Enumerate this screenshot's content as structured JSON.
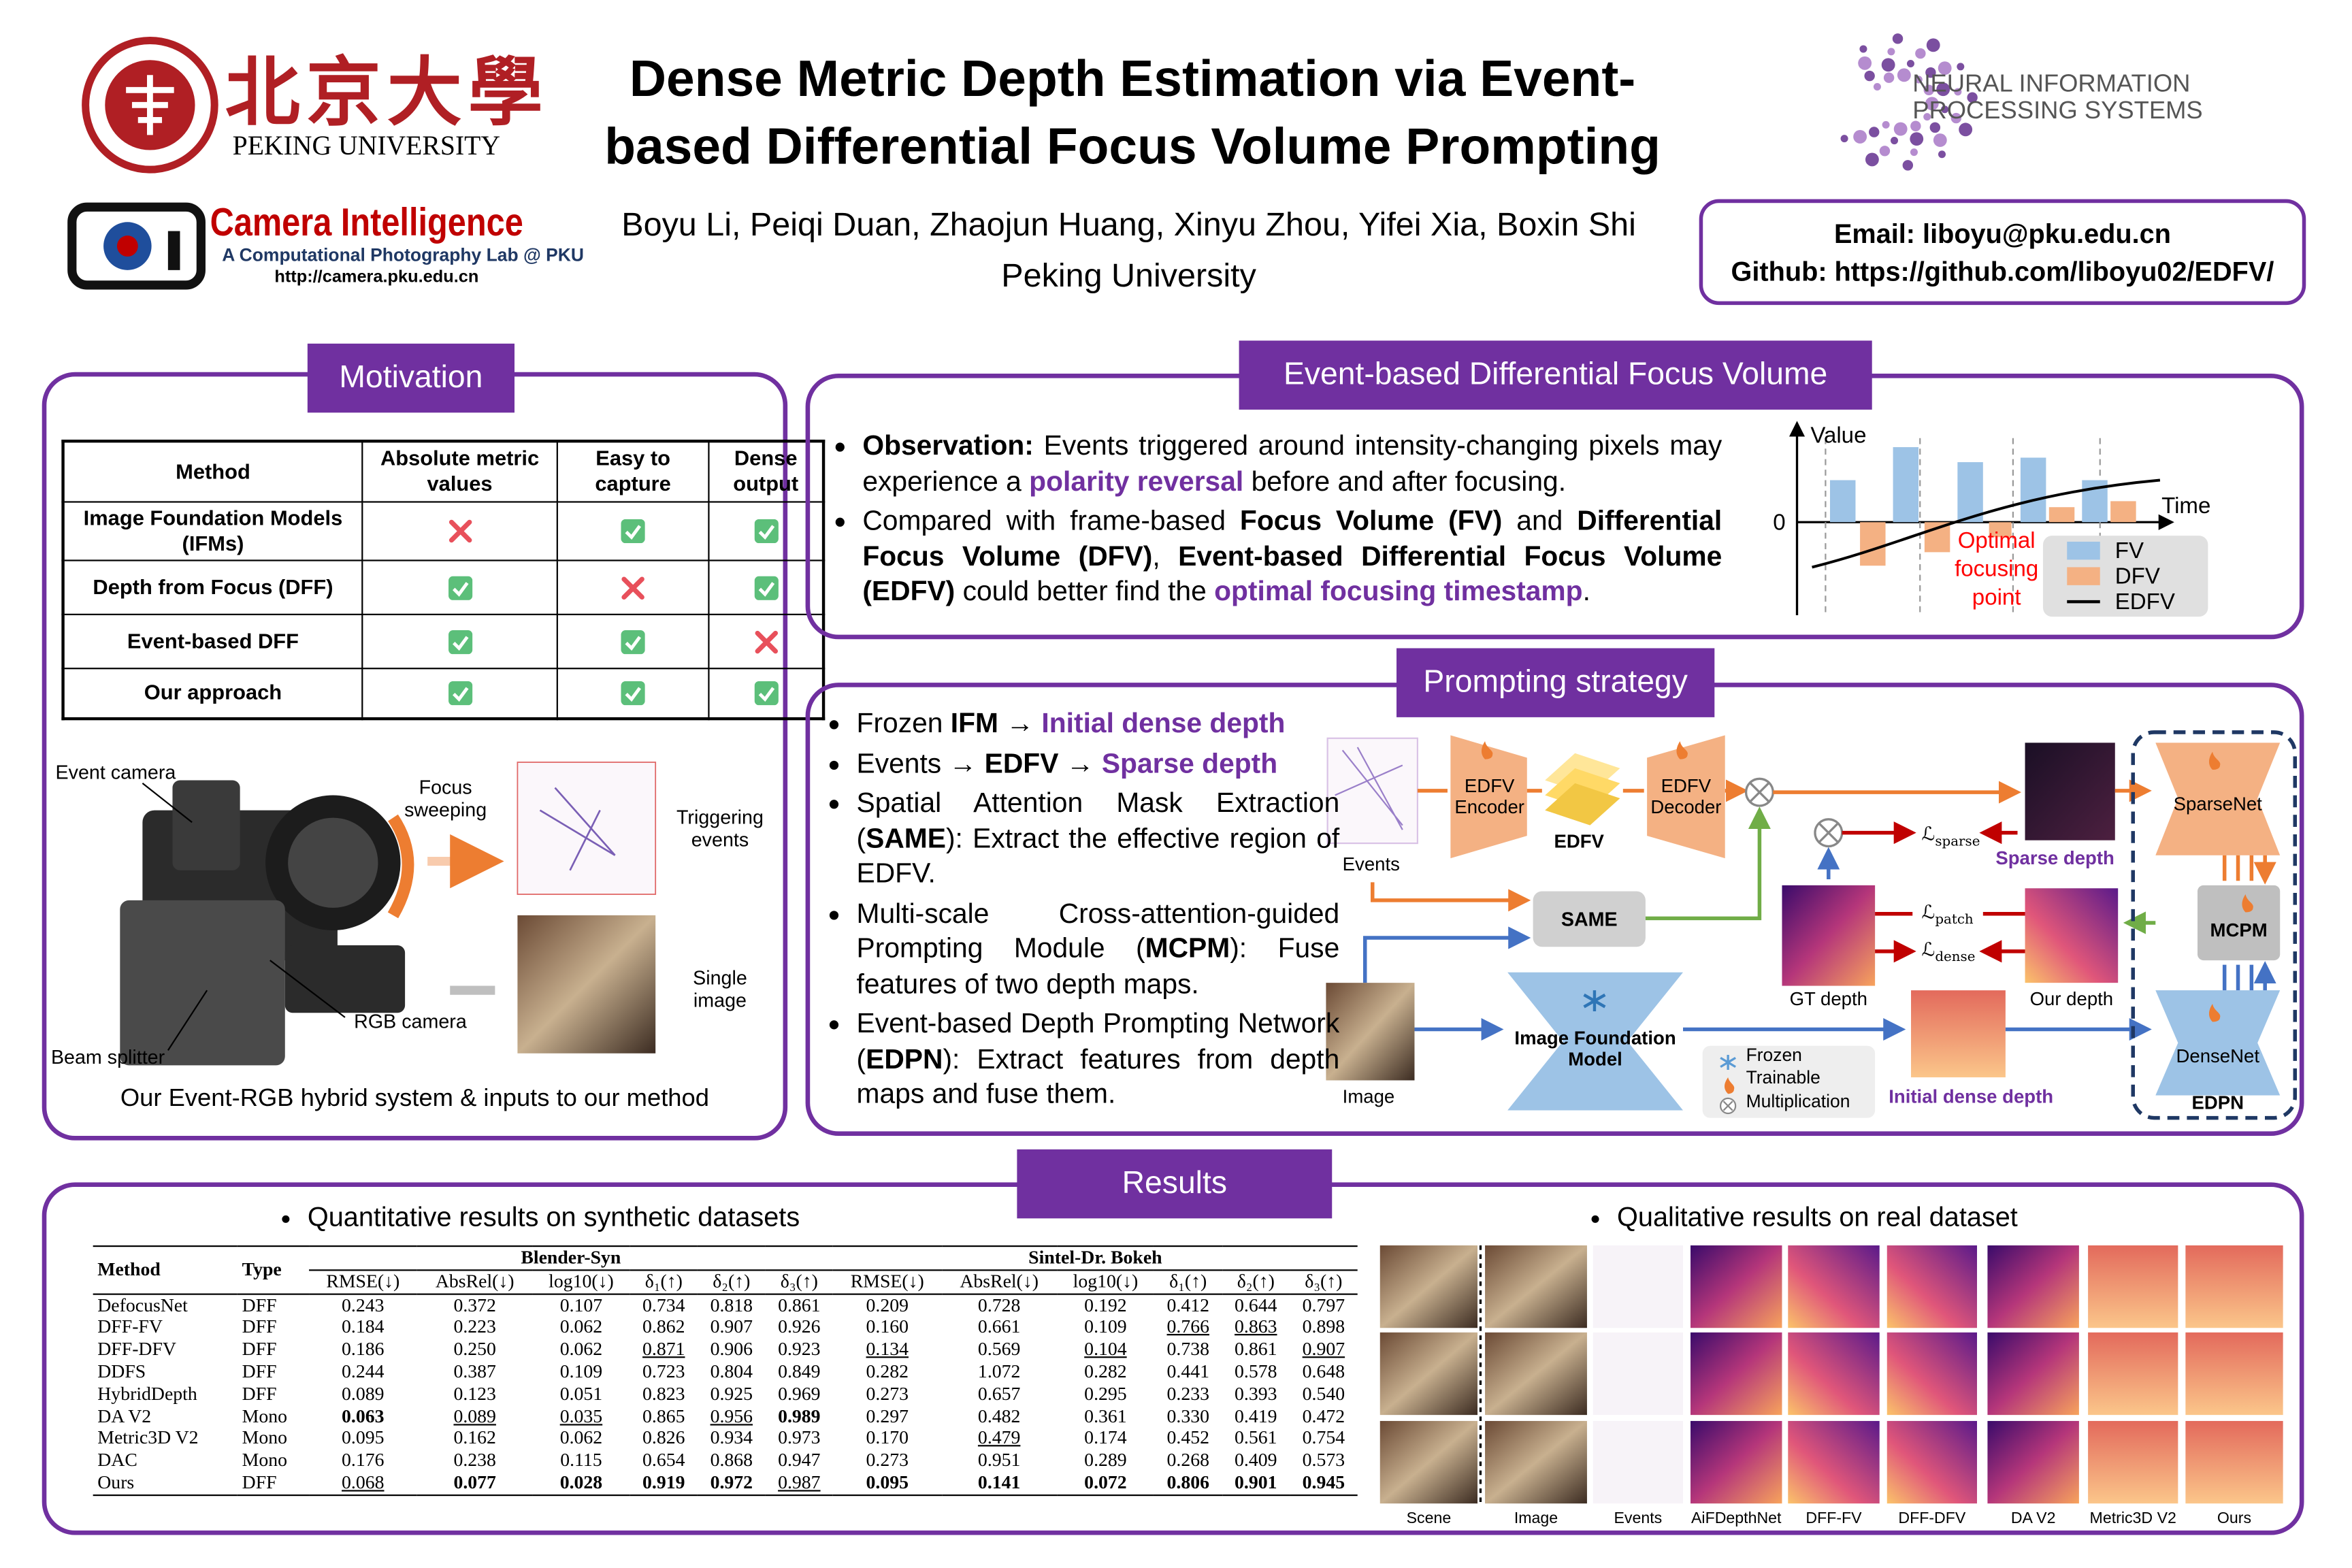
{
  "header": {
    "university_cn": "北京大學",
    "university_en": "PEKING UNIVERSITY",
    "title_lines": [
      "Dense Metric Depth Estimation via Event-",
      "based Differential Focus Volume Prompting"
    ],
    "authors": "Boyu Li, Peiqi Duan, Zhaojun Huang, Xinyu Zhou, Yifei Xia, Boxin Shi",
    "affiliation": "Peking University",
    "lab_name": "Camera Intelligence",
    "lab_subtitle": "A Computational Photography Lab @ PKU",
    "lab_url": "http://camera.pku.edu.cn",
    "conference_lines": [
      "NEURAL INFORMATION",
      "PROCESSING SYSTEMS"
    ],
    "email": "Email: liboyu@pku.edu.cn",
    "github": "Github: https://github.com/liboyu02/EDFV/"
  },
  "motivation": {
    "heading": "Motivation",
    "table": {
      "columns": [
        "Method",
        "Absolute metric values",
        "Easy to capture",
        "Dense output"
      ],
      "rows": [
        {
          "method": "Image Foundation Models (IFMs)",
          "checks": [
            false,
            true,
            true
          ]
        },
        {
          "method": "Depth from Focus (DFF)",
          "checks": [
            true,
            false,
            true
          ]
        },
        {
          "method": "Event-based DFF",
          "checks": [
            true,
            true,
            false
          ]
        },
        {
          "method": "Our approach",
          "checks": [
            true,
            true,
            true
          ]
        }
      ]
    },
    "figure": {
      "event_camera": "Event camera",
      "focus_sweeping": "Focus sweeping",
      "triggering_events": "Triggering events",
      "rgb_camera": "RGB camera",
      "single_image": "Single image",
      "beam_splitter": "Beam splitter"
    },
    "caption": "Our Event-RGB hybrid system & inputs to our method"
  },
  "edfv": {
    "heading": "Event-based Differential Focus Volume",
    "bullets": [
      [
        {
          "text": "Observation:",
          "style": "bold"
        },
        {
          "text": " Events triggered around intensity-changing pixels may experience a ",
          "style": "plain"
        },
        {
          "text": "polarity reversal",
          "style": "purple"
        },
        {
          "text": " before and after focusing.",
          "style": "plain"
        }
      ],
      [
        {
          "text": "Compared with frame-based ",
          "style": "plain"
        },
        {
          "text": "Focus Volume (FV)",
          "style": "bold"
        },
        {
          "text": " and ",
          "style": "plain"
        },
        {
          "text": "Differential Focus Volume (DFV)",
          "style": "bold"
        },
        {
          "text": ", ",
          "style": "plain"
        },
        {
          "text": "Event-based Differential Focus Volume (EDFV)",
          "style": "bold"
        },
        {
          "text": " could better find the ",
          "style": "plain"
        },
        {
          "text": "optimal focusing timestamp",
          "style": "purple"
        },
        {
          "text": ".",
          "style": "plain"
        }
      ]
    ],
    "plot": {
      "y_label": "Value",
      "x_label": "Time",
      "zero": 0,
      "annotation": "Optimal focusing point",
      "legend": [
        {
          "name": "FV",
          "color": "#9dc3e6"
        },
        {
          "name": "DFV",
          "color": "#f4b183"
        },
        {
          "name": "EDFV",
          "color": "#000000"
        }
      ]
    }
  },
  "prompting": {
    "heading": "Prompting strategy",
    "bullets": [
      [
        {
          "text": "Frozen ",
          "style": "plain"
        },
        {
          "text": "IFM",
          "style": "bold"
        },
        {
          "text": " → ",
          "style": "plain"
        },
        {
          "text": "Initial dense depth",
          "style": "purple"
        }
      ],
      [
        {
          "text": "Events → ",
          "style": "plain"
        },
        {
          "text": "EDFV",
          "style": "bold"
        },
        {
          "text": " → ",
          "style": "plain"
        },
        {
          "text": "Sparse depth",
          "style": "purple"
        }
      ],
      [
        {
          "text": "Spatial Attention Mask Extraction (",
          "style": "plain"
        },
        {
          "text": "SAME",
          "style": "bold"
        },
        {
          "text": "): Extract the effective region of EDFV.",
          "style": "plain"
        }
      ],
      [
        {
          "text": "Multi-scale Cross-attention-guided Prompting Module (",
          "style": "plain"
        },
        {
          "text": "MCPM",
          "style": "bold"
        },
        {
          "text": "): Fuse features of two depth maps.",
          "style": "plain"
        }
      ],
      [
        {
          "text": "Event-based Depth Prompting Network (",
          "style": "plain"
        },
        {
          "text": "EDPN",
          "style": "bold"
        },
        {
          "text": "): Extract features from depth maps and fuse them.",
          "style": "plain"
        }
      ]
    ],
    "diagram": {
      "events": "Events",
      "edfv_encoder": "EDFV Encoder",
      "edfv": "EDFV",
      "edfv_decoder": "EDFV Decoder",
      "same": "SAME",
      "image": "Image",
      "ifm": "Image Foundation Model",
      "gt_depth": "GT depth",
      "our_depth": "Our depth",
      "sparse_depth": "Sparse depth",
      "initial_dense_depth": "Initial dense depth",
      "loss_symbol": "ℒ",
      "loss_sparse": "sparse",
      "loss_patch": "patch",
      "loss_dense": "dense",
      "sparsenet": "SparseNet",
      "mcpm": "MCPM",
      "densenet": "DenseNet",
      "edpn": "EDPN",
      "legend_frozen": "Frozen",
      "legend_trainable": "Trainable",
      "legend_multiplication": "Multiplication"
    }
  },
  "results": {
    "heading": "Results",
    "quantitative_heading": "Quantitative results on synthetic datasets",
    "qualitative_heading": "Qualitative results on real dataset",
    "table": {
      "method_header": "Method",
      "type_header": "Type",
      "groups": [
        "Blender-Syn",
        "Sintel-Dr. Bokeh"
      ],
      "metrics": [
        "RMSE(↓)",
        "AbsRel(↓)",
        "log10(↓)",
        "δ₁(↑)",
        "δ₂(↑)",
        "δ₃(↑)"
      ],
      "rows": [
        {
          "method": "DefocusNet",
          "type": "DFF",
          "values": [
            "0.243",
            "0.372",
            "0.107",
            "0.734",
            "0.818",
            "0.861",
            "0.209",
            "0.728",
            "0.192",
            "0.412",
            "0.644",
            "0.797"
          ],
          "styles": [
            null,
            null,
            null,
            null,
            null,
            null,
            null,
            null,
            null,
            null,
            null,
            null
          ]
        },
        {
          "method": "DFF-FV",
          "type": "DFF",
          "values": [
            "0.184",
            "0.223",
            "0.062",
            "0.862",
            "0.907",
            "0.926",
            "0.160",
            "0.661",
            "0.109",
            "0.766",
            "0.863",
            "0.898"
          ],
          "styles": [
            null,
            null,
            null,
            null,
            null,
            null,
            null,
            null,
            null,
            "underline",
            "underline",
            null
          ]
        },
        {
          "method": "DFF-DFV",
          "type": "DFF",
          "values": [
            "0.186",
            "0.250",
            "0.062",
            "0.871",
            "0.906",
            "0.923",
            "0.134",
            "0.569",
            "0.104",
            "0.738",
            "0.861",
            "0.907"
          ],
          "styles": [
            null,
            null,
            null,
            "underline",
            null,
            null,
            "underline",
            null,
            "underline",
            null,
            null,
            "underline"
          ]
        },
        {
          "method": "DDFS",
          "type": "DFF",
          "values": [
            "0.244",
            "0.387",
            "0.109",
            "0.723",
            "0.804",
            "0.849",
            "0.282",
            "1.072",
            "0.282",
            "0.441",
            "0.578",
            "0.648"
          ],
          "styles": [
            null,
            null,
            null,
            null,
            null,
            null,
            null,
            null,
            null,
            null,
            null,
            null
          ]
        },
        {
          "method": "HybridDepth",
          "type": "DFF",
          "values": [
            "0.089",
            "0.123",
            "0.051",
            "0.823",
            "0.925",
            "0.969",
            "0.273",
            "0.657",
            "0.295",
            "0.233",
            "0.393",
            "0.540"
          ],
          "styles": [
            null,
            null,
            null,
            null,
            null,
            null,
            null,
            null,
            null,
            null,
            null,
            null
          ]
        },
        {
          "method": "DA V2",
          "type": "Mono",
          "values": [
            "0.063",
            "0.089",
            "0.035",
            "0.865",
            "0.956",
            "0.989",
            "0.297",
            "0.482",
            "0.361",
            "0.330",
            "0.419",
            "0.472"
          ],
          "styles": [
            "bold",
            "underline",
            "underline",
            null,
            "underline",
            "bold",
            null,
            null,
            null,
            null,
            null,
            null
          ]
        },
        {
          "method": "Metric3D V2",
          "type": "Mono",
          "values": [
            "0.095",
            "0.162",
            "0.062",
            "0.826",
            "0.934",
            "0.973",
            "0.170",
            "0.479",
            "0.174",
            "0.452",
            "0.561",
            "0.754"
          ],
          "styles": [
            null,
            null,
            null,
            null,
            null,
            null,
            null,
            "underline",
            null,
            null,
            null,
            null
          ]
        },
        {
          "method": "DAC",
          "type": "Mono",
          "values": [
            "0.176",
            "0.238",
            "0.115",
            "0.654",
            "0.868",
            "0.947",
            "0.273",
            "0.951",
            "0.289",
            "0.268",
            "0.409",
            "0.573"
          ],
          "styles": [
            null,
            null,
            null,
            null,
            null,
            null,
            null,
            null,
            null,
            null,
            null,
            null
          ]
        },
        {
          "method": "Ours",
          "type": "DFF",
          "values": [
            "0.068",
            "0.077",
            "0.028",
            "0.919",
            "0.972",
            "0.987",
            "0.095",
            "0.141",
            "0.072",
            "0.806",
            "0.901",
            "0.945"
          ],
          "styles": [
            "underline",
            "bold",
            "bold",
            "bold",
            "bold",
            "underline",
            "bold",
            "bold",
            "bold",
            "bold",
            "bold",
            "bold"
          ]
        }
      ]
    },
    "qualitative_columns": [
      "Scene",
      "Image",
      "Events",
      "AiFDepthNet",
      "DFF-FV",
      "DFF-DFV",
      "DA V2",
      "Metric3D V2",
      "Ours"
    ]
  }
}
